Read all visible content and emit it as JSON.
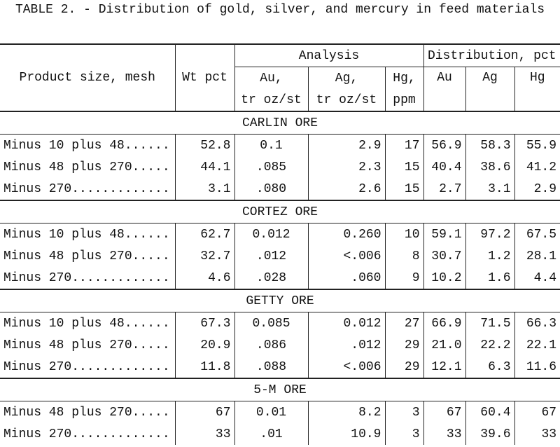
{
  "title": "TABLE 2. - Distribution of gold, silver, and mercury in feed materials",
  "table": {
    "header": {
      "product": "Product size, mesh",
      "wt": "Wt pct",
      "analysis": "Analysis",
      "distribution": "Distribution, pct",
      "au": [
        "Au,",
        "tr oz/st"
      ],
      "ag": [
        "Ag,",
        "tr oz/st"
      ],
      "hg": [
        "Hg,",
        "ppm"
      ],
      "dist_au": "Au",
      "dist_ag": "Ag",
      "dist_hg": "Hg"
    },
    "sections": [
      {
        "name": "CARLIN ORE",
        "rows": [
          [
            "Minus 10 plus 48......",
            "52.8",
            "0.1",
            "2.9",
            "17",
            "56.9",
            "58.3",
            "55.9"
          ],
          [
            "Minus 48 plus 270.....",
            "44.1",
            ".085",
            "2.3",
            "15",
            "40.4",
            "38.6",
            "41.2"
          ],
          [
            "Minus 270.............",
            "3.1",
            ".080",
            "2.6",
            "15",
            "2.7",
            "3.1",
            "2.9"
          ]
        ]
      },
      {
        "name": "CORTEZ ORE",
        "rows": [
          [
            "Minus 10 plus 48......",
            "62.7",
            "0.012",
            "0.260",
            "10",
            "59.1",
            "97.2",
            "67.5"
          ],
          [
            "Minus 48 plus 270.....",
            "32.7",
            ".012",
            "<.006",
            "8",
            "30.7",
            "1.2",
            "28.1"
          ],
          [
            "Minus 270.............",
            "4.6",
            ".028",
            ".060",
            "9",
            "10.2",
            "1.6",
            "4.4"
          ]
        ]
      },
      {
        "name": "GETTY ORE",
        "rows": [
          [
            "Minus 10 plus 48......",
            "67.3",
            "0.085",
            "0.012",
            "27",
            "66.9",
            "71.5",
            "66.3"
          ],
          [
            "Minus 48 plus 270.....",
            "20.9",
            ".086",
            ".012",
            "29",
            "21.0",
            "22.2",
            "22.1"
          ],
          [
            "Minus 270.............",
            "11.8",
            ".088",
            "<.006",
            "29",
            "12.1",
            "6.3",
            "11.6"
          ]
        ]
      },
      {
        "name": "5-M ORE",
        "rows": [
          [
            "Minus 48 plus 270.....",
            "67",
            "0.01",
            "8.2",
            "3",
            "67",
            "60.4",
            "67"
          ],
          [
            "Minus 270.............",
            "33",
            ".01",
            "10.9",
            "3",
            "33",
            "39.6",
            "33"
          ]
        ]
      }
    ]
  }
}
